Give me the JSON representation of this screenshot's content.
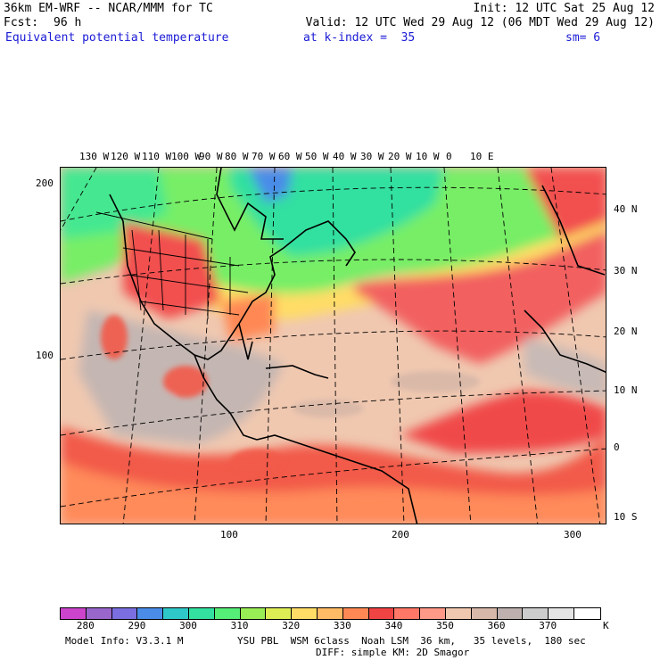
{
  "header": {
    "model_title": "36km EM-WRF -- NCAR/MMM for TC",
    "init": "Init: 12 UTC Sat 25 Aug 12",
    "fcst_label": "Fcst:",
    "fcst_value": "96 h",
    "valid": "Valid: 12 UTC Wed 29 Aug 12 (06 MDT Wed 29 Aug 12)",
    "field_name": "Equivalent potential temperature",
    "level": "at k-index =  35",
    "smoothing": "sm= 6"
  },
  "map": {
    "lon_labels": [
      "130 W",
      "120 W",
      "110 W",
      "100 W",
      "90 W",
      "80 W",
      "70 W",
      "60 W",
      "50 W",
      "40 W",
      "30 W",
      "20 W",
      "10 W",
      "0",
      "10 E"
    ],
    "lat_labels": [
      "40 N",
      "30 N",
      "20 N",
      "10 N",
      "0",
      "10 S"
    ],
    "y_grid_labels": [
      "200",
      "100"
    ],
    "x_grid_labels": [
      "100",
      "200",
      "300"
    ]
  },
  "colorbar": {
    "labels": [
      "280",
      "290",
      "300",
      "310",
      "320",
      "330",
      "340",
      "350",
      "360",
      "370"
    ],
    "units": "K",
    "colors": [
      "#cc44cc",
      "#9966cc",
      "#7a6ee0",
      "#4a8ce8",
      "#2fc8c8",
      "#33e0a0",
      "#55ee77",
      "#99ee55",
      "#ddee55",
      "#ffdd66",
      "#ffbb66",
      "#ff8855",
      "#f04444",
      "#ff7766",
      "#ff9988",
      "#f0c8b0",
      "#d8b8a8",
      "#bdb0ae",
      "#cccccc",
      "#e4e4e4",
      "#ffffff"
    ]
  },
  "footer": {
    "model_info": "Model Info: V3.3.1 M",
    "physics_line1": "YSU PBL  WSM 6class  Noah LSM  36 km,   35 levels,  180 sec",
    "physics_line2": "DIFF: simple KM: 2D Smagor"
  }
}
